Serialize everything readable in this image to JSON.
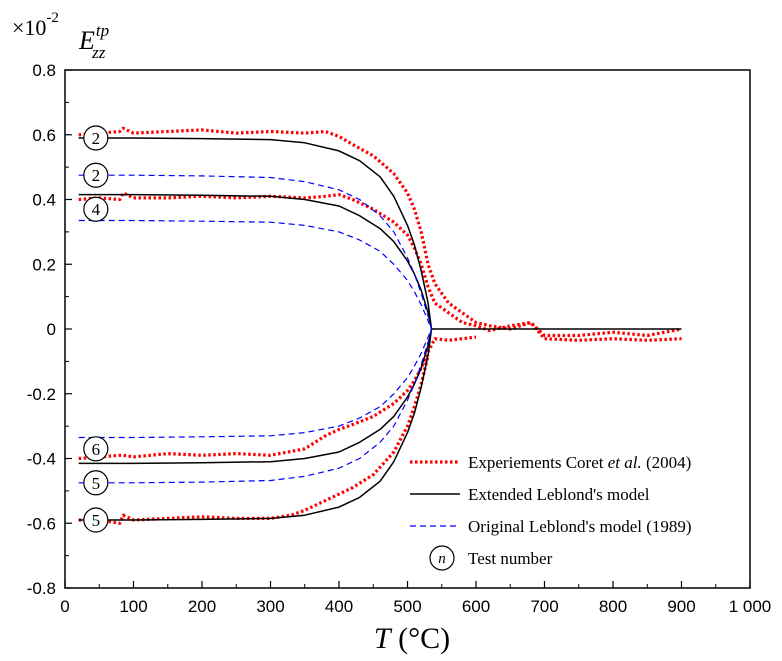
{
  "chart_data": {
    "type": "line",
    "y_multiplier": "×10",
    "y_multiplier_exponent": "-2",
    "ylabel": {
      "main": "E",
      "sub": "zz",
      "sup": "tp"
    },
    "xlabel": {
      "var": "T",
      "unit": " (°C)"
    },
    "xlim": [
      0,
      1000
    ],
    "ylim": [
      -0.8,
      0.8
    ],
    "xticks": [
      0,
      100,
      200,
      300,
      400,
      500,
      600,
      700,
      800,
      900,
      1000
    ],
    "xtick_labels": [
      "0",
      "100",
      "200",
      "300",
      "400",
      "500",
      "600",
      "700",
      "800",
      "900",
      "1 000"
    ],
    "yticks": [
      -0.8,
      -0.6,
      -0.4,
      -0.2,
      0,
      0.2,
      0.4,
      0.6,
      0.8
    ],
    "ytick_labels": [
      "-0.8",
      "-0.6",
      "-0.4",
      "-0.2",
      "0",
      "0.2",
      "0.4",
      "0.6",
      "0.8"
    ],
    "legend": {
      "placement": "bottom-right",
      "entries": [
        {
          "style": "experiment",
          "text_before": "Experiements Coret ",
          "text_italic": "et al.",
          "text_after": " (2004)"
        },
        {
          "style": "extended",
          "text_before": "Extended Leblond's model",
          "text_italic": "",
          "text_after": ""
        },
        {
          "style": "original",
          "text_before": "Original Leblond's model (1989)",
          "text_italic": "",
          "text_after": ""
        },
        {
          "style": "marker",
          "marker_label": "n",
          "text_before": "Test number",
          "text_italic": "",
          "text_after": ""
        }
      ]
    },
    "colors": {
      "experiment": "#ff0000",
      "extended": "#000000",
      "original": "#0000ff"
    },
    "series": [
      {
        "style": "experiment",
        "x": [
          20,
          50,
          80,
          85,
          100,
          150,
          200,
          250,
          300,
          350,
          380,
          400,
          420,
          450,
          480,
          500,
          510,
          520,
          530,
          540,
          560,
          580,
          600,
          620,
          650,
          680,
          700,
          750,
          800,
          850,
          900
        ],
        "y": [
          0.6,
          0.605,
          0.61,
          0.62,
          0.605,
          0.61,
          0.615,
          0.605,
          0.61,
          0.605,
          0.61,
          0.595,
          0.57,
          0.535,
          0.48,
          0.42,
          0.37,
          0.3,
          0.2,
          0.14,
          0.08,
          0.05,
          0.02,
          0.01,
          0.0,
          0.02,
          -0.02,
          -0.02,
          -0.01,
          -0.02,
          0.0
        ]
      },
      {
        "style": "experiment",
        "x": [
          20,
          50,
          80,
          85,
          100,
          150,
          200,
          250,
          300,
          350,
          380,
          400,
          420,
          450,
          480,
          500,
          510,
          520,
          530,
          540,
          560,
          580,
          600,
          620,
          650,
          680,
          700,
          750,
          800,
          850,
          900
        ],
        "y": [
          0.4,
          0.405,
          0.4,
          0.42,
          0.405,
          0.405,
          0.41,
          0.405,
          0.41,
          0.405,
          0.41,
          0.415,
          0.4,
          0.37,
          0.33,
          0.29,
          0.25,
          0.2,
          0.13,
          0.08,
          0.05,
          0.02,
          0.01,
          -0.005,
          0.01,
          0.02,
          -0.03,
          -0.035,
          -0.03,
          -0.035,
          -0.03
        ]
      },
      {
        "style": "experiment",
        "x": [
          20,
          50,
          80,
          85,
          100,
          150,
          200,
          250,
          300,
          350,
          380,
          400,
          420,
          450,
          480,
          500,
          510,
          520,
          530,
          540,
          560,
          580,
          600
        ],
        "y": [
          -0.4,
          -0.395,
          -0.39,
          -0.39,
          -0.395,
          -0.385,
          -0.39,
          -0.385,
          -0.39,
          -0.37,
          -0.33,
          -0.31,
          -0.295,
          -0.27,
          -0.23,
          -0.19,
          -0.16,
          -0.12,
          -0.07,
          -0.03,
          -0.035,
          -0.03,
          -0.025
        ]
      },
      {
        "style": "experiment",
        "x": [
          20,
          50,
          80,
          85,
          100,
          150,
          200,
          250,
          300,
          330,
          350,
          380,
          400,
          420,
          450,
          480,
          500,
          510,
          520,
          530
        ],
        "y": [
          -0.59,
          -0.59,
          -0.6,
          -0.575,
          -0.59,
          -0.585,
          -0.58,
          -0.585,
          -0.585,
          -0.575,
          -0.56,
          -0.53,
          -0.51,
          -0.49,
          -0.45,
          -0.38,
          -0.3,
          -0.24,
          -0.17,
          -0.08
        ]
      },
      {
        "style": "extended",
        "x": [
          20,
          100,
          200,
          300,
          350,
          400,
          430,
          460,
          480,
          500,
          510,
          520,
          530,
          535,
          900
        ],
        "y": [
          0.59,
          0.59,
          0.588,
          0.585,
          0.575,
          0.55,
          0.52,
          0.47,
          0.41,
          0.32,
          0.26,
          0.18,
          0.08,
          0.0,
          0.0
        ]
      },
      {
        "style": "extended",
        "x": [
          20,
          100,
          200,
          300,
          350,
          400,
          430,
          460,
          480,
          500,
          510,
          520,
          530,
          535
        ],
        "y": [
          0.415,
          0.415,
          0.413,
          0.41,
          0.4,
          0.38,
          0.35,
          0.31,
          0.27,
          0.21,
          0.17,
          0.12,
          0.05,
          0.0
        ]
      },
      {
        "style": "extended",
        "x": [
          20,
          100,
          200,
          300,
          350,
          400,
          430,
          460,
          480,
          500,
          510,
          520,
          530,
          535
        ],
        "y": [
          -0.415,
          -0.415,
          -0.413,
          -0.41,
          -0.4,
          -0.38,
          -0.35,
          -0.31,
          -0.27,
          -0.21,
          -0.17,
          -0.12,
          -0.05,
          0.0
        ]
      },
      {
        "style": "extended",
        "x": [
          20,
          100,
          200,
          300,
          350,
          400,
          430,
          460,
          480,
          500,
          510,
          520,
          530,
          535
        ],
        "y": [
          -0.59,
          -0.59,
          -0.588,
          -0.585,
          -0.575,
          -0.55,
          -0.52,
          -0.47,
          -0.41,
          -0.32,
          -0.26,
          -0.18,
          -0.08,
          0.0
        ]
      },
      {
        "style": "original",
        "x": [
          20,
          100,
          200,
          300,
          350,
          400,
          430,
          460,
          480,
          500,
          510,
          520,
          530,
          535
        ],
        "y": [
          0.475,
          0.475,
          0.473,
          0.468,
          0.455,
          0.43,
          0.4,
          0.35,
          0.3,
          0.22,
          0.17,
          0.11,
          0.04,
          0.0
        ]
      },
      {
        "style": "original",
        "x": [
          20,
          100,
          200,
          300,
          350,
          400,
          430,
          460,
          480,
          500,
          510,
          520,
          530,
          535
        ],
        "y": [
          0.335,
          0.335,
          0.333,
          0.33,
          0.32,
          0.3,
          0.275,
          0.24,
          0.2,
          0.15,
          0.115,
          0.075,
          0.025,
          0.0
        ]
      },
      {
        "style": "original",
        "x": [
          20,
          100,
          200,
          300,
          350,
          400,
          430,
          460,
          480,
          500,
          510,
          520,
          530,
          535
        ],
        "y": [
          -0.335,
          -0.335,
          -0.333,
          -0.33,
          -0.32,
          -0.3,
          -0.275,
          -0.24,
          -0.2,
          -0.15,
          -0.115,
          -0.075,
          -0.025,
          0.0
        ]
      },
      {
        "style": "original",
        "x": [
          20,
          100,
          200,
          300,
          350,
          400,
          430,
          460,
          480,
          500,
          510,
          520,
          530,
          535
        ],
        "y": [
          -0.475,
          -0.475,
          -0.473,
          -0.468,
          -0.455,
          -0.43,
          -0.4,
          -0.35,
          -0.3,
          -0.22,
          -0.17,
          -0.11,
          -0.04,
          0.0
        ]
      }
    ],
    "test_markers": [
      {
        "label": "2",
        "x": 45,
        "y": 0.59
      },
      {
        "label": "2",
        "x": 45,
        "y": 0.475
      },
      {
        "label": "4",
        "x": 45,
        "y": 0.37
      },
      {
        "label": "6",
        "x": 45,
        "y": -0.37
      },
      {
        "label": "5",
        "x": 45,
        "y": -0.475
      },
      {
        "label": "5",
        "x": 45,
        "y": -0.59
      }
    ]
  }
}
